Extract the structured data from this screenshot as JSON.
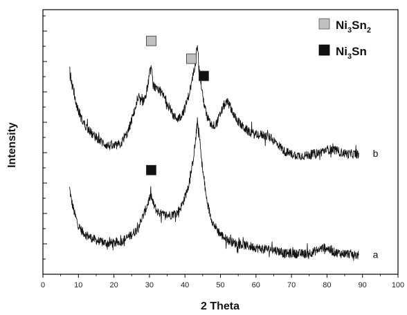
{
  "chart_data": {
    "type": "line",
    "title": "",
    "xlabel": "2 Theta",
    "ylabel": "Intensity",
    "xlim": [
      0,
      100
    ],
    "x_ticks": [
      0,
      10,
      20,
      30,
      40,
      50,
      60,
      70,
      80,
      90,
      100
    ],
    "y_tick_labels": false,
    "grid": false,
    "legend": {
      "placement": "top-right",
      "entries": [
        {
          "marker": "light-gray-square",
          "color": "#bfbfbf",
          "text": "Ni",
          "sub": "3",
          "text2": "Sn",
          "sub2": "2"
        },
        {
          "marker": "black-square",
          "color": "#111111",
          "text": "Ni",
          "sub": "3",
          "text2": "Sn",
          "sub2": ""
        }
      ]
    },
    "series": [
      {
        "name": "a",
        "x": [
          7.5,
          8,
          9,
          10,
          11,
          12,
          14,
          16,
          18,
          20,
          22,
          24,
          26,
          27,
          28,
          29,
          30,
          30.5,
          31,
          32,
          33,
          34,
          35,
          36,
          37,
          38,
          39,
          40,
          41,
          42,
          43,
          43.5,
          44,
          45,
          46,
          47,
          48,
          50,
          52,
          54,
          56,
          58,
          60,
          62,
          64,
          66,
          68,
          70,
          72,
          74,
          76,
          78,
          79,
          80,
          81,
          82,
          84,
          86,
          88,
          89
        ],
        "y": [
          0.5,
          0.42,
          0.32,
          0.25,
          0.21,
          0.19,
          0.16,
          0.14,
          0.13,
          0.13,
          0.14,
          0.17,
          0.21,
          0.25,
          0.3,
          0.36,
          0.43,
          0.45,
          0.4,
          0.35,
          0.33,
          0.32,
          0.32,
          0.32,
          0.33,
          0.34,
          0.38,
          0.44,
          0.52,
          0.64,
          0.82,
          0.95,
          0.86,
          0.62,
          0.44,
          0.33,
          0.26,
          0.19,
          0.15,
          0.13,
          0.12,
          0.11,
          0.1,
          0.09,
          0.09,
          0.08,
          0.06,
          0.06,
          0.06,
          0.06,
          0.07,
          0.09,
          0.1,
          0.1,
          0.08,
          0.07,
          0.06,
          0.06,
          0.05,
          0.05
        ]
      },
      {
        "name": "b",
        "x": [
          7.5,
          8,
          9,
          10,
          11,
          12,
          14,
          16,
          18,
          20,
          22,
          24,
          25,
          26,
          27,
          28,
          29,
          30,
          30.5,
          31,
          32,
          33,
          34,
          35,
          36,
          37,
          38,
          39,
          40,
          41,
          42,
          43,
          43.5,
          44,
          45,
          46,
          47,
          48,
          49,
          50,
          51,
          52,
          53,
          54,
          56,
          58,
          60,
          62,
          64,
          66,
          68,
          70,
          72,
          74,
          76,
          78,
          80,
          82,
          84,
          86,
          88,
          89
        ],
        "y": [
          1.3,
          1.22,
          1.1,
          1.02,
          0.96,
          0.92,
          0.86,
          0.82,
          0.79,
          0.78,
          0.8,
          0.88,
          0.96,
          1.04,
          1.1,
          1.08,
          1.12,
          1.26,
          1.32,
          1.2,
          1.16,
          1.15,
          1.12,
          1.08,
          1.02,
          0.98,
          0.97,
          0.99,
          1.04,
          1.12,
          1.22,
          1.36,
          1.48,
          1.3,
          1.12,
          1.0,
          0.94,
          0.92,
          0.94,
          1.0,
          1.06,
          1.08,
          1.04,
          0.98,
          0.92,
          0.88,
          0.86,
          0.86,
          0.84,
          0.8,
          0.75,
          0.73,
          0.72,
          0.72,
          0.73,
          0.74,
          0.76,
          0.76,
          0.74,
          0.73,
          0.73,
          0.73
        ]
      }
    ],
    "trace_labels": [
      {
        "series": "a",
        "text": "a"
      },
      {
        "series": "b",
        "text": "b"
      }
    ],
    "peak_markers": [
      {
        "series": "b",
        "x": 30.5,
        "phase": "Ni3Sn2",
        "color": "#bfbfbf"
      },
      {
        "series": "b",
        "x": 41.8,
        "phase": "Ni3Sn2",
        "color": "#bfbfbf"
      },
      {
        "series": "b",
        "x": 45.3,
        "phase": "Ni3Sn",
        "color": "#111111"
      },
      {
        "series": "a",
        "x": 30.5,
        "phase": "Ni3Sn",
        "color": "#111111"
      }
    ]
  }
}
